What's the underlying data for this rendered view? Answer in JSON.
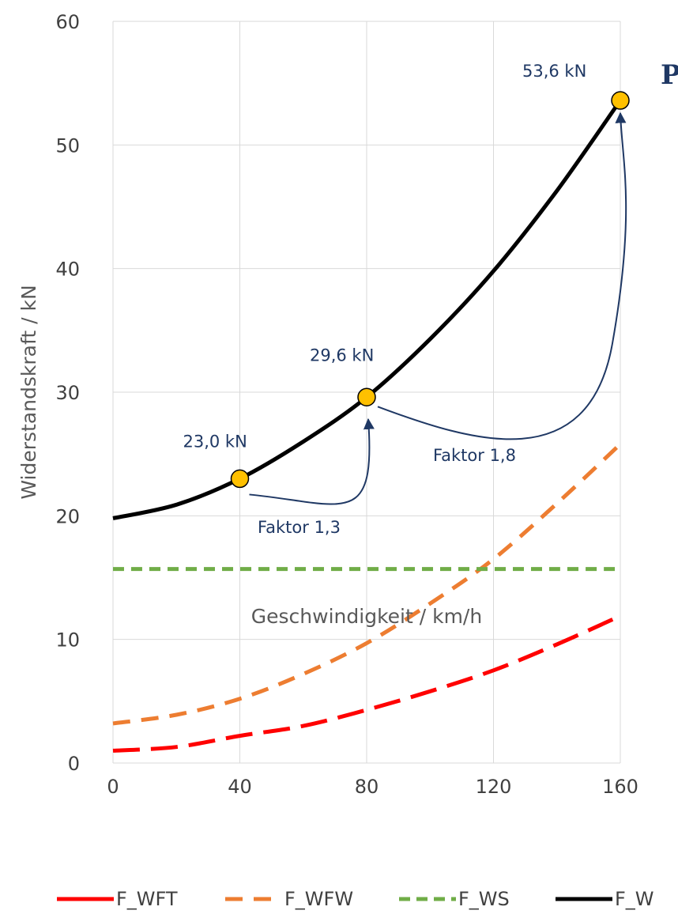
{
  "chart_data": {
    "type": "line",
    "title": "",
    "xlabel": "Geschwindigkeit / km/h",
    "ylabel": "Widerstandskraft / kN",
    "xlim": [
      0,
      160
    ],
    "ylim": [
      0,
      60
    ],
    "x_ticks": [
      0,
      40,
      80,
      120,
      160
    ],
    "y_ticks": [
      0,
      10,
      20,
      30,
      40,
      50,
      60
    ],
    "grid": true,
    "legend_position": "bottom",
    "x": [
      0,
      20,
      40,
      60,
      80,
      100,
      120,
      140,
      160
    ],
    "series": [
      {
        "name": "F_WFT",
        "color": "#ff0000",
        "style": "long-dash",
        "values": [
          1.0,
          1.3,
          2.2,
          3.0,
          4.3,
          5.8,
          7.5,
          9.6,
          11.9
        ]
      },
      {
        "name": "F_WFW",
        "color": "#ed7d31",
        "style": "dash",
        "values": [
          3.2,
          3.9,
          5.2,
          7.2,
          9.7,
          12.9,
          16.5,
          21.0,
          25.8
        ]
      },
      {
        "name": "F_WS",
        "color": "#70ad47",
        "style": "short-dash",
        "values": [
          15.7,
          15.7,
          15.7,
          15.7,
          15.7,
          15.7,
          15.7,
          15.7,
          15.7
        ]
      },
      {
        "name": "F_W",
        "color": "#000000",
        "style": "solid",
        "values": [
          19.8,
          20.9,
          23.0,
          26.0,
          29.6,
          34.3,
          39.8,
          46.3,
          53.6
        ]
      }
    ],
    "annotations": {
      "points": [
        {
          "x": 40,
          "y": 23.0,
          "label": "23,0 kN"
        },
        {
          "x": 80,
          "y": 29.6,
          "label": "29,6 kN"
        },
        {
          "x": 160,
          "y": 53.6,
          "label": "53,6 kN"
        }
      ],
      "factors": [
        {
          "label": "Faktor 1,3",
          "from_x": 40,
          "to_x": 80
        },
        {
          "label": "Faktor 1,8",
          "from_x": 80,
          "to_x": 160
        }
      ],
      "point_fill": "#ffc000",
      "arrow_color": "#1f3864"
    },
    "side_text": "P"
  }
}
